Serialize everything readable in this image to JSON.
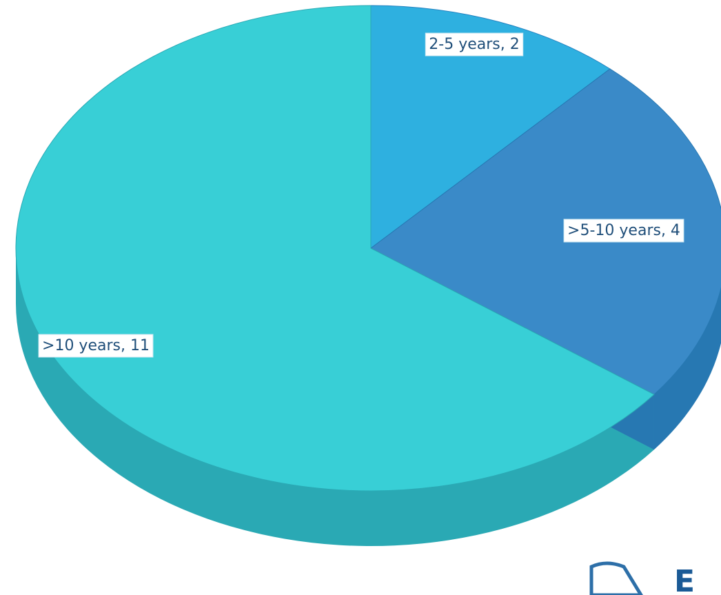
{
  "chart_data": {
    "type": "pie3d",
    "values": [
      2,
      4,
      11
    ],
    "value_labels": [
      "2-5 years, 2",
      ">5-10 years, 4",
      ">10 years, 11"
    ],
    "colors": [
      "#2eb0e0",
      "#3a8ac8",
      "#38cfd6"
    ],
    "side_colors": [
      "#2282c0",
      "#2778b2",
      "#2aa9b4"
    ]
  },
  "logo_text": "E"
}
